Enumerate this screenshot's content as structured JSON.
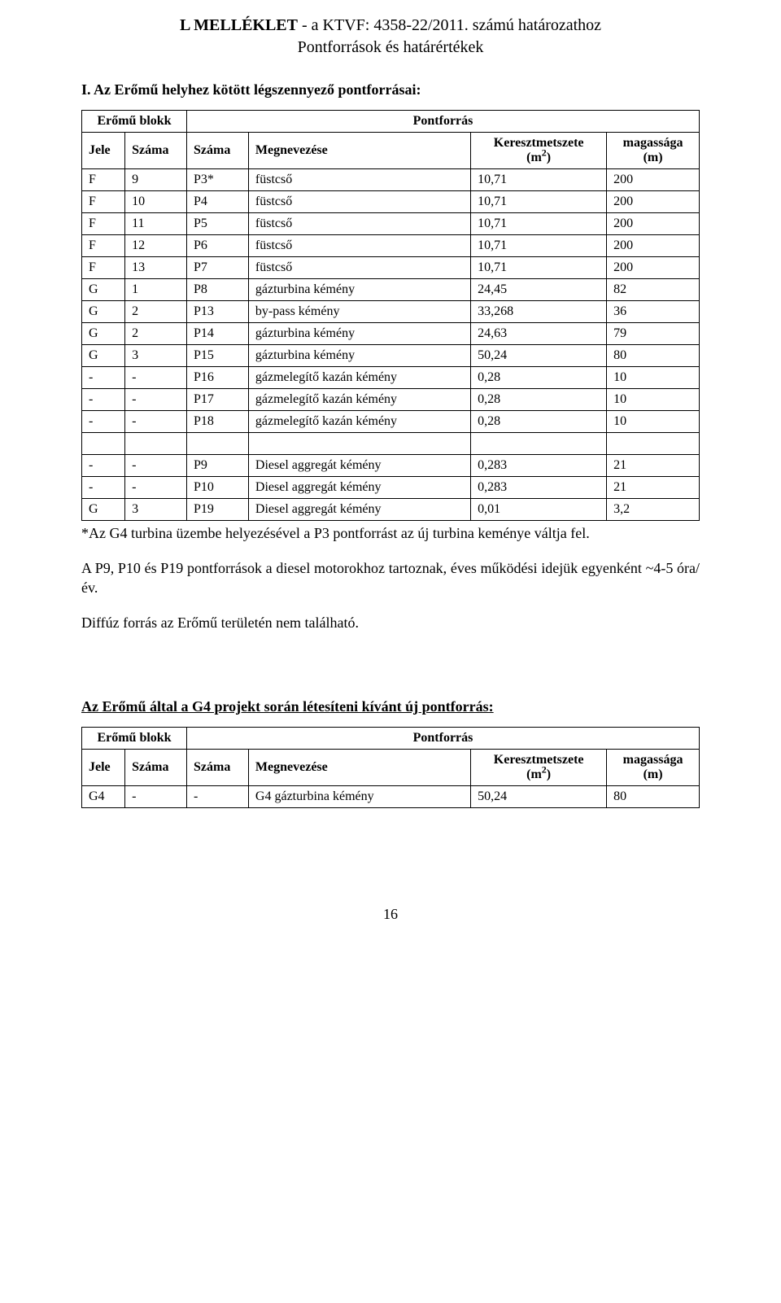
{
  "title_prefix": "L MELLÉKLET",
  "title_rest": " - a KTVF: 4358-22/2011. számú határozathoz",
  "subtitle": "Pontforrások és határértékek",
  "section1_heading": "I. Az Erőmű helyhez kötött légszennyező pontforrásai:",
  "table1": {
    "group_left": "Erőmű blokk",
    "group_right": "Pontforrás",
    "columns": [
      "Jele",
      "Száma",
      "Száma",
      "Megnevezése",
      "Keresztmetszete (m²)",
      "magassága (m)"
    ],
    "col_km_line1": "Keresztmetszete",
    "col_km_line2": "(m",
    "col_km_sup": "2",
    "col_km_after": ")",
    "col_mag_line1": "magassága",
    "col_mag_line2": "(m)",
    "rows_block1": [
      [
        "F",
        "9",
        "P3*",
        "füstcső",
        "10,71",
        "200"
      ],
      [
        "F",
        "10",
        "P4",
        "füstcső",
        "10,71",
        "200"
      ],
      [
        "F",
        "11",
        "P5",
        "füstcső",
        "10,71",
        "200"
      ],
      [
        "F",
        "12",
        "P6",
        "füstcső",
        "10,71",
        "200"
      ],
      [
        "F",
        "13",
        "P7",
        "füstcső",
        "10,71",
        "200"
      ],
      [
        "G",
        "1",
        "P8",
        "gázturbina kémény",
        "24,45",
        "82"
      ],
      [
        "G",
        "2",
        "P13",
        "by-pass kémény",
        "33,268",
        "36"
      ],
      [
        "G",
        "2",
        "P14",
        "gázturbina kémény",
        "24,63",
        "79"
      ],
      [
        "G",
        "3",
        "P15",
        "gázturbina kémény",
        "50,24",
        "80"
      ],
      [
        "-",
        "-",
        "P16",
        "gázmelegítő kazán kémény",
        "0,28",
        "10"
      ],
      [
        "-",
        "-",
        "P17",
        "gázmelegítő kazán kémény",
        "0,28",
        "10"
      ],
      [
        "-",
        "-",
        "P18",
        "gázmelegítő kazán kémény",
        "0,28",
        "10"
      ]
    ],
    "rows_block2": [
      [
        "-",
        "-",
        "P9",
        "Diesel aggregát kémény",
        "0,283",
        "21"
      ],
      [
        "-",
        "-",
        "P10",
        "Diesel aggregát kémény",
        "0,283",
        "21"
      ],
      [
        "G",
        "3",
        "P19",
        "Diesel aggregát kémény",
        "0,01",
        "3,2"
      ]
    ]
  },
  "note1": "*Az G4 turbina üzembe helyezésével a P3 pontforrást az új turbina keménye váltja fel.",
  "para2": "A P9, P10 és P19 pontforrások a diesel motorokhoz tartoznak, éves működési idejük egyenként ~4-5 óra/év.",
  "para3": "Diffúz forrás az Erőmű területén nem található.",
  "section2_heading": "Az Erőmű által a G4 projekt során létesíteni kívánt új pontforrás:",
  "table2": {
    "group_left": "Erőmű blokk",
    "group_right": "Pontforrás",
    "columns": [
      "Jele",
      "Száma",
      "Száma",
      "Megnevezése",
      "Keresztmetszete (m²)",
      "magassága (m)"
    ],
    "col_km_line1": "Keresztmetszete",
    "col_km_line2": "(m",
    "col_km_sup": "2",
    "col_km_after": ")",
    "col_mag_line1": "magassága",
    "col_mag_line2": "(m)",
    "rows": [
      [
        "G4",
        "-",
        "-",
        "G4 gázturbina kémény",
        "50,24",
        "80"
      ]
    ]
  },
  "page_number": "16",
  "colors": {
    "text": "#000000",
    "background": "#ffffff",
    "border": "#000000"
  }
}
